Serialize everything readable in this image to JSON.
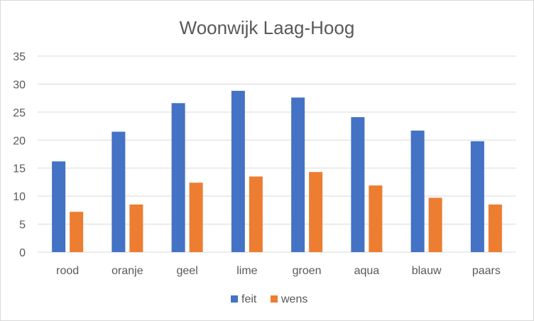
{
  "chart_data": {
    "type": "bar",
    "title": "Woonwijk Laag-Hoog",
    "xlabel": "",
    "ylabel": "",
    "categories": [
      "rood",
      "oranje",
      "geel",
      "lime",
      "groen",
      "aqua",
      "blauw",
      "paars"
    ],
    "series": [
      {
        "name": "feit",
        "color": "#4472c4",
        "values": [
          16.2,
          21.5,
          26.6,
          28.8,
          27.6,
          24.1,
          21.7,
          19.8
        ]
      },
      {
        "name": "wens",
        "color": "#ed7d31",
        "values": [
          7.2,
          8.5,
          12.4,
          13.5,
          14.3,
          11.9,
          9.7,
          8.5
        ]
      }
    ],
    "ylim": [
      0,
      35
    ],
    "yticks": [
      "0",
      "5",
      "10",
      "15",
      "20",
      "25",
      "30",
      "35"
    ],
    "grid": true,
    "legend_position": "bottom"
  }
}
